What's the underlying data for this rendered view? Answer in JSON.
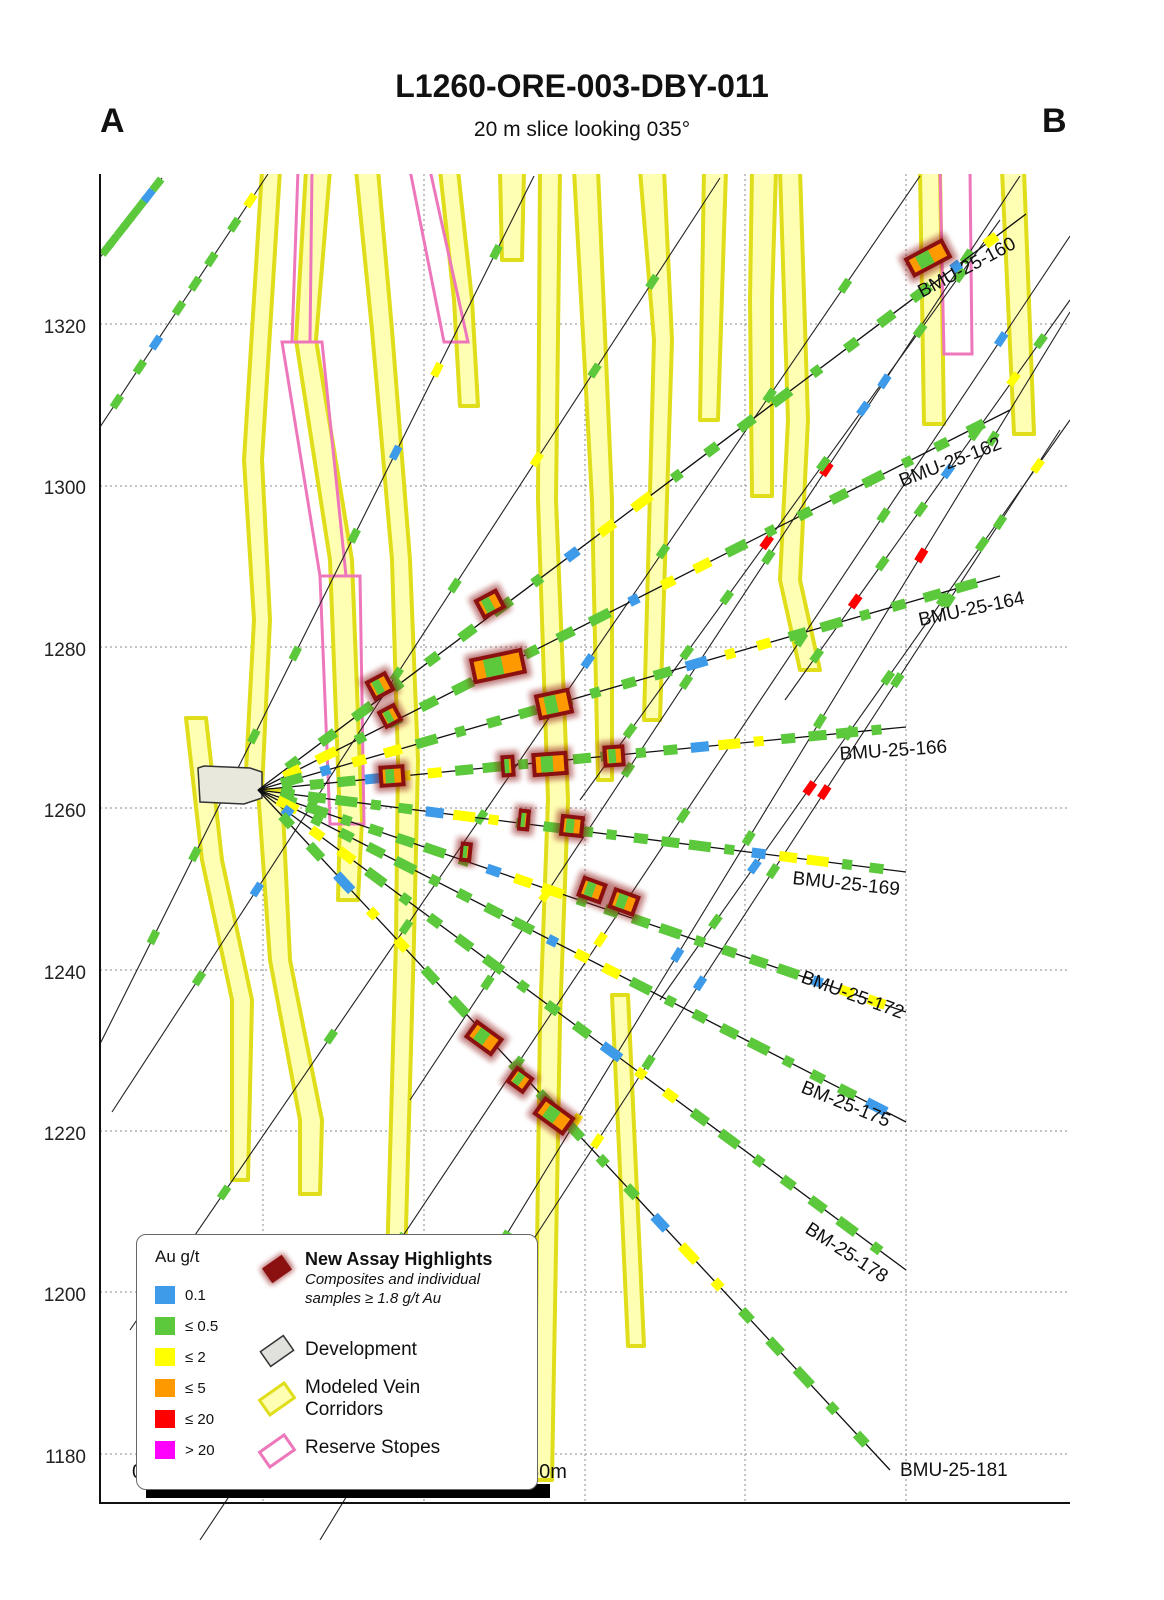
{
  "title": "L1260-ORE-003-DBY-011",
  "subtitle": "20 m slice looking 035°",
  "corner_left": "A",
  "corner_right": "B",
  "elevation_labels": [
    "1320",
    "1300",
    "1280",
    "1260",
    "1240",
    "1220",
    "1200",
    "1180"
  ],
  "scale_bar": {
    "start_label": "0m",
    "end_label": "50m"
  },
  "drillholes": [
    {
      "id": "BMU-25-160",
      "label": "BMU-25-160"
    },
    {
      "id": "BMU-25-162",
      "label": "BMU-25-162"
    },
    {
      "id": "BMU-25-164",
      "label": "BMU-25-164"
    },
    {
      "id": "BMU-25-166",
      "label": "BMU-25-166"
    },
    {
      "id": "BMU-25-169",
      "label": "BMU-25-169"
    },
    {
      "id": "BMU-25-172",
      "label": "BMU-25-172"
    },
    {
      "id": "BM-25-175",
      "label": "BM-25-175"
    },
    {
      "id": "BM-25-178",
      "label": "BM-25-178"
    },
    {
      "id": "BMU-25-181",
      "label": "BMU-25-181"
    }
  ],
  "legend": {
    "grade_title": "Au g/t",
    "grades": [
      {
        "label": "0.1",
        "color": "#3d9be9"
      },
      {
        "label": "≤ 0.5",
        "color": "#5cc83c"
      },
      {
        "label": "≤ 2",
        "color": "#ffff00"
      },
      {
        "label": "≤ 5",
        "color": "#ff9900"
      },
      {
        "label": "≤ 20",
        "color": "#ff0000"
      },
      {
        "label": "> 20",
        "color": "#ff00ff"
      }
    ],
    "highlights_title": "New Assay Highlights",
    "highlights_note_1": "Composites and individual",
    "highlights_note_2": "samples ≥ 1.8 g/t Au",
    "development": "Development",
    "vein_1": "Modeled Vein",
    "vein_2": "Corridors",
    "stopes": "Reserve Stopes"
  },
  "colors": {
    "vein_fill": "#ffffb3",
    "vein_stroke": "#e6e600",
    "stope_stroke": "#ee77bb",
    "highlight_fill": "#8b1010",
    "development_fill": "#e8e8dd"
  }
}
